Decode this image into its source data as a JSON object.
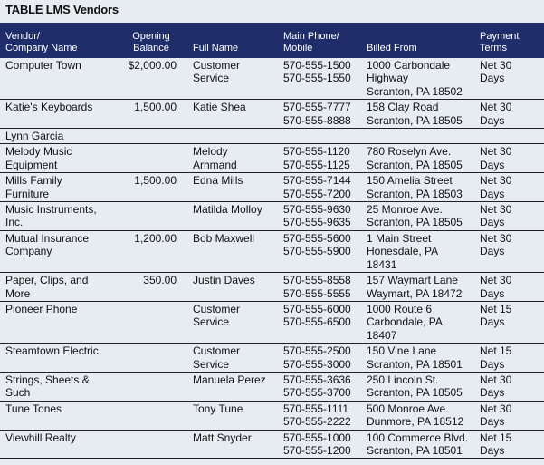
{
  "title": "TABLE LMS Vendors",
  "table": {
    "header": [
      [
        "Vendor/",
        "Company Name"
      ],
      [
        "Opening",
        "Balance"
      ],
      [
        "Full Name"
      ],
      [
        "Main Phone/",
        "Mobile"
      ],
      [
        "Billed From"
      ],
      [
        "Payment",
        "Terms"
      ]
    ],
    "rows": [
      [
        [
          "Computer Town"
        ],
        [
          "$2,000.00"
        ],
        [
          "Customer",
          "Service"
        ],
        [
          "570-555-1500",
          "570-555-1550"
        ],
        [
          "1000 Carbondale",
          "Highway",
          "Scranton, PA 18502"
        ],
        [
          "Net 30",
          "Days"
        ]
      ],
      [
        [
          "Katie's Keyboards"
        ],
        [
          "1,500.00"
        ],
        [
          "Katie Shea"
        ],
        [
          "570-555-7777",
          "570-555-8888"
        ],
        [
          "158 Clay Road",
          "Scranton, PA 18505"
        ],
        [
          "Net 30",
          "Days"
        ]
      ],
      [
        [
          "Lynn Garcia"
        ],
        null,
        null,
        null,
        null,
        null
      ],
      [
        [
          "Melody Music",
          "Equipment"
        ],
        null,
        [
          "Melody",
          "Arhmand"
        ],
        [
          "570-555-1120",
          "570-555-1125"
        ],
        [
          "780 Roselyn Ave.",
          "Scranton, PA 18505"
        ],
        [
          "Net 30",
          "Days"
        ]
      ],
      [
        [
          "Mills Family",
          "Furniture"
        ],
        [
          "1,500.00"
        ],
        [
          "Edna Mills"
        ],
        [
          "570-555-7144",
          "570-555-7200"
        ],
        [
          "150 Amelia Street",
          "Scranton, PA 18503"
        ],
        [
          "Net 30",
          "Days"
        ]
      ],
      [
        [
          "Music Instruments,",
          "Inc."
        ],
        null,
        [
          "Matilda Molloy"
        ],
        [
          "570-555-9630",
          "570-555-9635"
        ],
        [
          "25 Monroe Ave.",
          "Scranton, PA 18505"
        ],
        [
          "Net 30",
          "Days"
        ]
      ],
      [
        [
          "Mutual Insurance",
          "Company"
        ],
        [
          "1,200.00"
        ],
        [
          "Bob Maxwell"
        ],
        [
          "570-555-5600",
          "570-555-5900"
        ],
        [
          "1 Main Street",
          "Honesdale, PA",
          "18431"
        ],
        [
          "Net 30",
          "Days"
        ]
      ],
      [
        [
          "Paper, Clips, and",
          "More"
        ],
        [
          "350.00"
        ],
        [
          "Justin Daves"
        ],
        [
          "570-555-8558",
          "570-555-5555"
        ],
        [
          "157 Waymart Lane",
          "Waymart, PA 18472"
        ],
        [
          "Net 30",
          "Days"
        ]
      ],
      [
        [
          "Pioneer Phone"
        ],
        null,
        [
          "Customer",
          "Service"
        ],
        [
          "570-555-6000",
          "570-555-6500"
        ],
        [
          "1000 Route 6",
          "Carbondale, PA",
          "18407"
        ],
        [
          "Net 15",
          "Days"
        ]
      ],
      [
        [
          "Steamtown Electric"
        ],
        null,
        [
          "Customer",
          "Service"
        ],
        [
          "570-555-2500",
          "570-555-3000"
        ],
        [
          "150 Vine Lane",
          "Scranton, PA 18501"
        ],
        [
          "Net 15",
          "Days"
        ]
      ],
      [
        [
          "Strings, Sheets &",
          "Such"
        ],
        null,
        [
          "Manuela Perez"
        ],
        [
          "570-555-3636",
          "570-555-3700"
        ],
        [
          "250 Lincoln St.",
          "Scranton, PA 18505"
        ],
        [
          "Net 30",
          "Days"
        ]
      ],
      [
        [
          "Tune Tones"
        ],
        null,
        [
          "Tony Tune"
        ],
        [
          "570-555-1111",
          "570-555-2222"
        ],
        [
          "500 Monroe Ave.",
          "Dunmore, PA 18512"
        ],
        [
          "Net 30",
          "Days"
        ]
      ],
      [
        [
          "Viewhill Realty"
        ],
        null,
        [
          "Matt Snyder"
        ],
        [
          "570-555-1000",
          "570-555-1200"
        ],
        [
          "100 Commerce Blvd.",
          "Scranton, PA 18501"
        ],
        [
          "Net 15",
          "Days"
        ]
      ]
    ]
  }
}
